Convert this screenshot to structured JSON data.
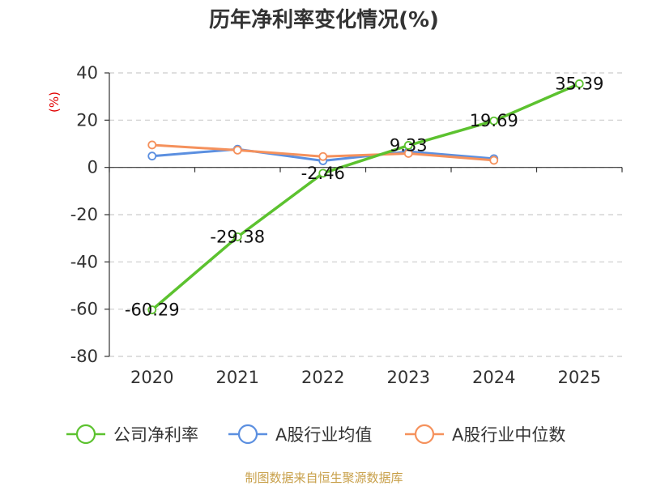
{
  "chart_data": {
    "type": "line",
    "title": "历年净利率变化情况(%)",
    "ylabel": "(%)",
    "xlabel": "",
    "categories": [
      "2020",
      "2021",
      "2022",
      "2023",
      "2024",
      "2025"
    ],
    "ylim": [
      -80,
      40
    ],
    "yticks": [
      40,
      20,
      0,
      -20,
      -40,
      -60,
      -80
    ],
    "grid": true,
    "legend_position": "bottom",
    "series": [
      {
        "name": "公司净利率",
        "color": "#5cc22f",
        "values": [
          -60.29,
          -29.38,
          -2.46,
          9.33,
          19.69,
          35.39
        ],
        "labels": [
          "-60.29",
          "-29.38",
          "-2.46",
          "9.33",
          "19.69",
          "35.39"
        ]
      },
      {
        "name": "A股行业均值",
        "color": "#5b8fe0",
        "values": [
          4.8,
          7.7,
          2.8,
          6.7,
          3.7,
          null
        ]
      },
      {
        "name": "A股行业中位数",
        "color": "#f5915c",
        "values": [
          9.5,
          7.3,
          4.6,
          5.9,
          3.0,
          null
        ]
      }
    ]
  },
  "source": "制图数据来自恒生聚源数据库"
}
